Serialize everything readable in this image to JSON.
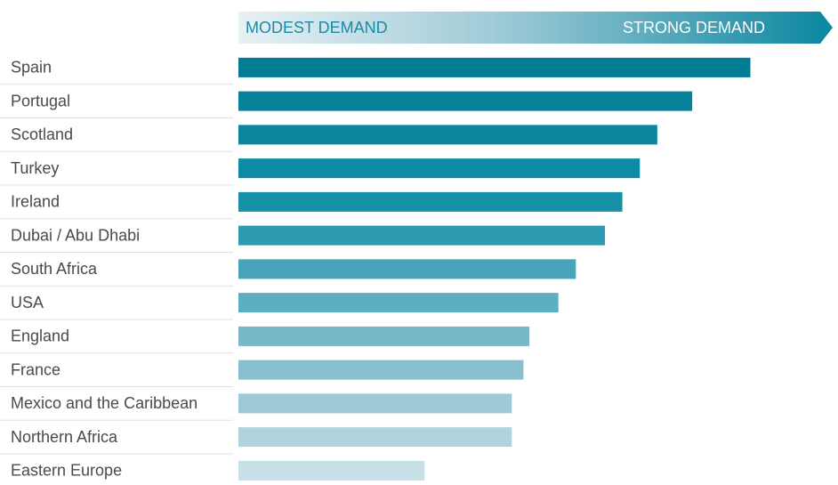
{
  "chart_data": {
    "type": "bar",
    "orientation": "horizontal",
    "scale_labels": [
      "MODEST DEMAND",
      "STRONG DEMAND"
    ],
    "categories": [
      "Spain",
      "Portugal",
      "Scotland",
      "Turkey",
      "Ireland",
      "Dubai / Abu Dhabi",
      "South Africa",
      "USA",
      "England",
      "France",
      "Mexico and the Caribbean",
      "Northern Africa",
      "Eastern Europe"
    ],
    "values": [
      88,
      78,
      72,
      69,
      66,
      63,
      58,
      55,
      50,
      49,
      47,
      47,
      32
    ],
    "colors": [
      "#007c93",
      "#08819a",
      "#0b869d",
      "#0c8ba2",
      "#1590a7",
      "#2e9ab0",
      "#48a4b8",
      "#5eaec1",
      "#78b8c9",
      "#88c0cf",
      "#9ec9d6",
      "#b0d3de",
      "#c7dfe7"
    ],
    "xlim": [
      0,
      100
    ]
  }
}
